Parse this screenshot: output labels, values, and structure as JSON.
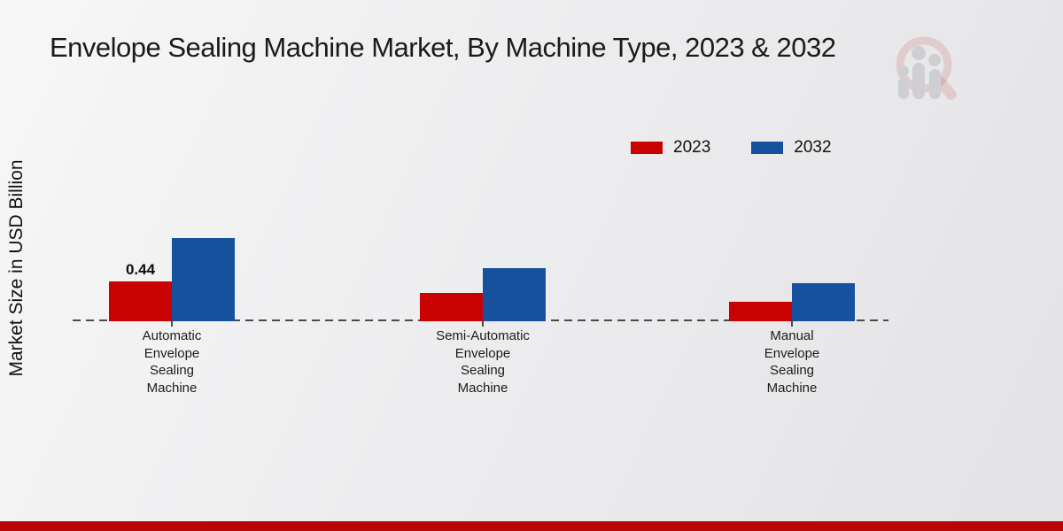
{
  "chart_data": {
    "type": "bar",
    "title": "Envelope Sealing Machine Market, By Machine Type, 2023 & 2032",
    "ylabel": "Market Size in USD Billion",
    "xlabel": "",
    "categories": [
      "Automatic Envelope Sealing Machine",
      "Semi-Automatic Envelope Sealing Machine",
      "Manual Envelope Sealing Machine"
    ],
    "category_display_lines": [
      [
        "Automatic",
        "Envelope",
        "Sealing",
        "Machine"
      ],
      [
        "Semi-Automatic",
        "Envelope",
        "Sealing",
        "Machine"
      ],
      [
        "Manual",
        "Envelope",
        "Sealing",
        "Machine"
      ]
    ],
    "series": [
      {
        "name": "2023",
        "color": "#c80101",
        "values": [
          0.44,
          0.31,
          0.22
        ],
        "value_labels": [
          "0.44",
          "",
          ""
        ]
      },
      {
        "name": "2032",
        "color": "#15519d",
        "values": [
          0.92,
          0.59,
          0.42
        ],
        "value_labels": [
          "",
          "",
          ""
        ]
      }
    ],
    "ylim": [
      0,
      1.0
    ],
    "grid": false,
    "legend_position": "top-right",
    "baseline_style": "dashed",
    "y_axis_ticks_visible": false
  },
  "branding": {
    "watermark_icon": "market-research-magnifier-logo",
    "accent_bar_color": "#b80606"
  },
  "colors": {
    "series_2023": "#c80101",
    "series_2032": "#15519d",
    "baseline": "#4a4a4a",
    "title_text": "#1a1a1a"
  }
}
